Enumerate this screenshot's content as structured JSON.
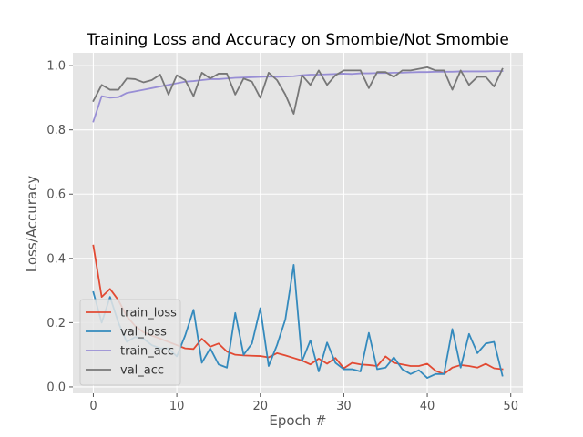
{
  "chart_data": {
    "type": "line",
    "title": "Training Loss and Accuracy on Smombie/Not Smombie",
    "xlabel": "Epoch #",
    "ylabel": "Loss/Accuracy",
    "xlim": [
      -2.45,
      51.45
    ],
    "ylim": [
      -0.02,
      1.04
    ],
    "xticks": [
      0,
      10,
      20,
      30,
      40,
      50
    ],
    "yticks": [
      0.0,
      0.2,
      0.4,
      0.6,
      0.8,
      1.0
    ],
    "grid": true,
    "legend_position": "lower-left",
    "x": [
      0,
      1,
      2,
      3,
      4,
      5,
      6,
      7,
      8,
      9,
      10,
      11,
      12,
      13,
      14,
      15,
      16,
      17,
      18,
      19,
      20,
      21,
      22,
      23,
      24,
      25,
      26,
      27,
      28,
      29,
      30,
      31,
      32,
      33,
      34,
      35,
      36,
      37,
      38,
      39,
      40,
      41,
      42,
      43,
      44,
      45,
      46,
      47,
      48,
      49
    ],
    "series": [
      {
        "name": "train_loss",
        "color": "#e24a33",
        "values": [
          0.44,
          0.28,
          0.305,
          0.27,
          0.22,
          0.19,
          0.17,
          0.16,
          0.15,
          0.14,
          0.13,
          0.12,
          0.118,
          0.15,
          0.125,
          0.135,
          0.11,
          0.1,
          0.098,
          0.097,
          0.096,
          0.092,
          0.105,
          0.098,
          0.09,
          0.082,
          0.07,
          0.088,
          0.072,
          0.09,
          0.058,
          0.075,
          0.07,
          0.068,
          0.065,
          0.095,
          0.075,
          0.07,
          0.065,
          0.065,
          0.072,
          0.05,
          0.04,
          0.06,
          0.068,
          0.065,
          0.06,
          0.072,
          0.058,
          0.055
        ]
      },
      {
        "name": "val_loss",
        "color": "#348abd",
        "values": [
          0.295,
          0.2,
          0.28,
          0.2,
          0.14,
          0.155,
          0.15,
          0.13,
          0.12,
          0.12,
          0.095,
          0.16,
          0.24,
          0.075,
          0.12,
          0.07,
          0.06,
          0.23,
          0.1,
          0.135,
          0.245,
          0.065,
          0.13,
          0.21,
          0.38,
          0.08,
          0.145,
          0.048,
          0.138,
          0.075,
          0.055,
          0.055,
          0.048,
          0.168,
          0.055,
          0.06,
          0.092,
          0.055,
          0.04,
          0.052,
          0.028,
          0.04,
          0.04,
          0.18,
          0.06,
          0.165,
          0.105,
          0.135,
          0.14,
          0.035
        ]
      },
      {
        "name": "train_acc",
        "color": "#988ed5",
        "values": [
          0.826,
          0.905,
          0.9,
          0.902,
          0.915,
          0.92,
          0.925,
          0.93,
          0.935,
          0.94,
          0.945,
          0.95,
          0.952,
          0.955,
          0.958,
          0.958,
          0.96,
          0.962,
          0.963,
          0.964,
          0.965,
          0.966,
          0.965,
          0.966,
          0.967,
          0.97,
          0.972,
          0.972,
          0.973,
          0.974,
          0.975,
          0.974,
          0.976,
          0.976,
          0.977,
          0.977,
          0.978,
          0.978,
          0.979,
          0.98,
          0.98,
          0.981,
          0.981,
          0.981,
          0.982,
          0.982,
          0.982,
          0.982,
          0.983,
          0.983
        ]
      },
      {
        "name": "val_acc",
        "color": "#777777",
        "values": [
          0.89,
          0.94,
          0.925,
          0.925,
          0.96,
          0.958,
          0.948,
          0.955,
          0.972,
          0.91,
          0.97,
          0.955,
          0.905,
          0.978,
          0.96,
          0.975,
          0.975,
          0.91,
          0.96,
          0.95,
          0.9,
          0.978,
          0.955,
          0.91,
          0.85,
          0.97,
          0.94,
          0.985,
          0.94,
          0.97,
          0.985,
          0.985,
          0.985,
          0.93,
          0.98,
          0.98,
          0.965,
          0.985,
          0.985,
          0.99,
          0.995,
          0.985,
          0.985,
          0.925,
          0.985,
          0.94,
          0.965,
          0.965,
          0.935,
          0.99
        ]
      }
    ]
  }
}
